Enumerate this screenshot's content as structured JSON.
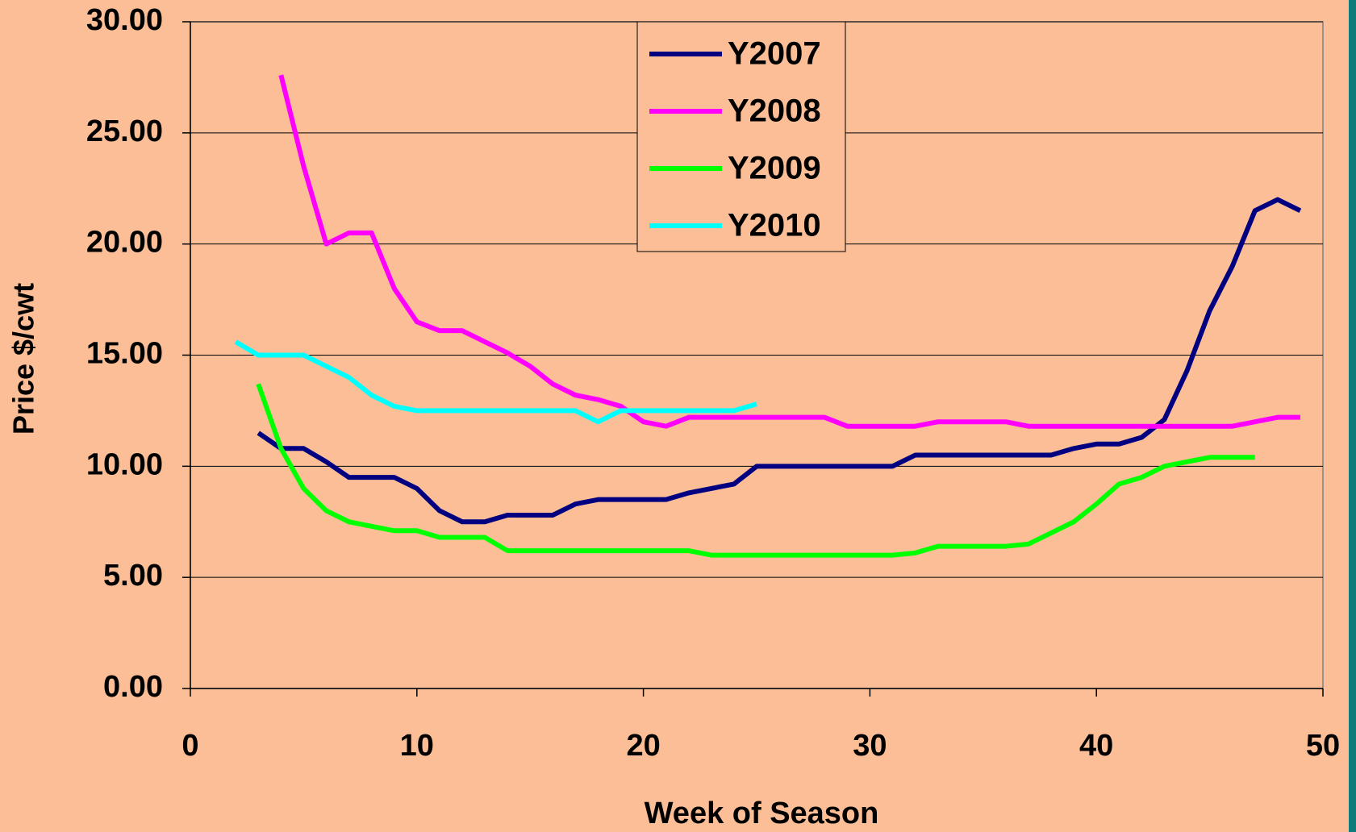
{
  "chart_data": {
    "type": "line",
    "x": [
      2,
      3,
      4,
      5,
      6,
      7,
      8,
      9,
      10,
      11,
      12,
      13,
      14,
      15,
      16,
      17,
      18,
      19,
      20,
      21,
      22,
      23,
      24,
      25,
      26,
      27,
      28,
      29,
      30,
      31,
      32,
      33,
      34,
      35,
      36,
      37,
      38,
      39,
      40,
      41,
      42,
      43,
      44,
      45,
      46,
      47,
      48,
      49
    ],
    "series": [
      {
        "name": "Y2007",
        "color": "#000080",
        "values": [
          null,
          11.5,
          10.8,
          10.8,
          10.2,
          9.5,
          9.5,
          9.5,
          9.0,
          8.0,
          7.5,
          7.5,
          7.8,
          7.8,
          7.8,
          8.3,
          8.5,
          8.5,
          8.5,
          8.5,
          8.8,
          9.0,
          9.2,
          10.0,
          10.0,
          10.0,
          10.0,
          10.0,
          10.0,
          10.0,
          10.5,
          10.5,
          10.5,
          10.5,
          10.5,
          10.5,
          10.5,
          10.8,
          11.0,
          11.0,
          11.3,
          12.1,
          14.3,
          17.0,
          19.0,
          21.5,
          22.0,
          21.5
        ]
      },
      {
        "name": "Y2008",
        "color": "#FF00FF",
        "values": [
          null,
          null,
          27.6,
          23.5,
          20.0,
          20.5,
          20.5,
          18.0,
          16.5,
          16.1,
          16.1,
          15.6,
          15.1,
          14.5,
          13.7,
          13.2,
          13.0,
          12.7,
          12.0,
          11.8,
          12.2,
          12.2,
          12.2,
          12.2,
          12.2,
          12.2,
          12.2,
          11.8,
          11.8,
          11.8,
          11.8,
          12.0,
          12.0,
          12.0,
          12.0,
          11.8,
          11.8,
          11.8,
          11.8,
          11.8,
          11.8,
          11.8,
          11.8,
          11.8,
          11.8,
          12.0,
          12.2,
          12.2
        ]
      },
      {
        "name": "Y2009",
        "color": "#00FF00",
        "values": [
          null,
          13.7,
          10.8,
          9.0,
          8.0,
          7.5,
          7.3,
          7.1,
          7.1,
          6.8,
          6.8,
          6.8,
          6.2,
          6.2,
          6.2,
          6.2,
          6.2,
          6.2,
          6.2,
          6.2,
          6.2,
          6.0,
          6.0,
          6.0,
          6.0,
          6.0,
          6.0,
          6.0,
          6.0,
          6.0,
          6.1,
          6.4,
          6.4,
          6.4,
          6.4,
          6.5,
          7.0,
          7.5,
          8.3,
          9.2,
          9.5,
          10.0,
          10.2,
          10.4,
          10.4,
          10.4,
          null,
          null
        ]
      },
      {
        "name": "Y2010",
        "color": "#00FFFF",
        "values": [
          15.6,
          15.0,
          15.0,
          15.0,
          14.5,
          14.0,
          13.2,
          12.7,
          12.5,
          12.5,
          12.5,
          12.5,
          12.5,
          12.5,
          12.5,
          12.5,
          12.0,
          12.5,
          12.5,
          12.5,
          12.5,
          12.5,
          12.5,
          12.8,
          null,
          null,
          null,
          null,
          null,
          null,
          null,
          null,
          null,
          null,
          null,
          null,
          null,
          null,
          null,
          null,
          null,
          null,
          null,
          null,
          null,
          null,
          null,
          null
        ]
      }
    ],
    "xlabel": "Week of Season",
    "ylabel": "Price $/cwt",
    "xlim": [
      0,
      50
    ],
    "xticks": [
      0,
      10,
      20,
      30,
      40,
      50
    ],
    "ylim": [
      0,
      30
    ],
    "yticks": [
      {
        "value": 0,
        "label": "0.00"
      },
      {
        "value": 5,
        "label": "5.00"
      },
      {
        "value": 10,
        "label": "10.00"
      },
      {
        "value": 15,
        "label": "15.00"
      },
      {
        "value": 20,
        "label": "20.00"
      },
      {
        "value": 25,
        "label": "25.00"
      },
      {
        "value": 30,
        "label": "30.00"
      }
    ],
    "grid": true,
    "legend": "top"
  }
}
